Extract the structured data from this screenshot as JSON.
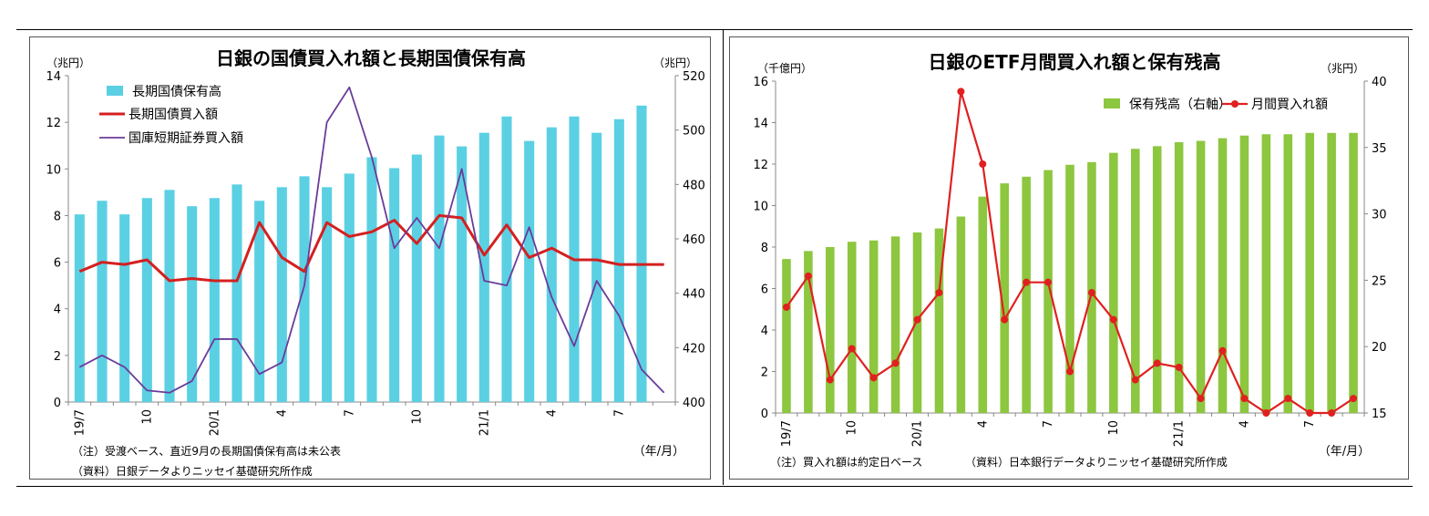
{
  "chart_data": [
    {
      "type": "bar+line",
      "title": "日銀の国債買入れ額と長期国債保有高",
      "y_left_unit": "（兆円）",
      "y_right_unit": "（兆円）",
      "x_unit": "（年/月）",
      "ylim_left": [
        0,
        14
      ],
      "ylim_right": [
        400,
        520
      ],
      "yticks_left": [
        0,
        2,
        4,
        6,
        8,
        10,
        12,
        14
      ],
      "yticks_right": [
        400,
        420,
        440,
        460,
        480,
        500,
        520
      ],
      "categories": [
        "19/7",
        "19/8",
        "19/9",
        "19/10",
        "19/11",
        "19/12",
        "20/1",
        "20/2",
        "20/3",
        "20/4",
        "20/5",
        "20/6",
        "20/7",
        "20/8",
        "20/9",
        "20/10",
        "20/11",
        "20/12",
        "21/1",
        "21/2",
        "21/3",
        "21/4",
        "21/5",
        "21/6",
        "21/7",
        "21/8",
        "21/9"
      ],
      "x_tick_labels": [
        "19/7",
        "",
        "",
        "10",
        "",
        "",
        "20/1",
        "",
        "",
        "4",
        "",
        "",
        "7",
        "",
        "",
        "10",
        "",
        "",
        "21/1",
        "",
        "",
        "4",
        "",
        "",
        "7",
        "",
        ""
      ],
      "legend": [
        "長期国債保有高",
        "長期国債買入額",
        "国庫短期証券買入額"
      ],
      "series": [
        {
          "name": "長期国債保有高",
          "kind": "bar",
          "axis": "right",
          "color": "#5BD0E3",
          "values": [
            469,
            474,
            469,
            475,
            478,
            472,
            475,
            480,
            474,
            479,
            483,
            479,
            484,
            490,
            486,
            491,
            498,
            494,
            499,
            505,
            496,
            501,
            505,
            499,
            504,
            509,
            null
          ]
        },
        {
          "name": "長期国債買入額",
          "kind": "line",
          "axis": "left",
          "color": "#D42020",
          "values": [
            5.6,
            6.0,
            5.9,
            6.1,
            5.2,
            5.3,
            5.2,
            5.2,
            7.7,
            6.2,
            5.6,
            7.7,
            7.1,
            7.3,
            7.8,
            6.8,
            8.0,
            7.9,
            6.3,
            7.6,
            6.2,
            6.6,
            6.1,
            6.1,
            5.9,
            5.9,
            5.9
          ]
        },
        {
          "name": "国庫短期証券買入額",
          "kind": "line",
          "axis": "left",
          "color": "#6A3C9A",
          "values": [
            1.5,
            2.0,
            1.5,
            0.5,
            0.4,
            0.9,
            2.7,
            2.7,
            1.2,
            1.7,
            5.0,
            12.0,
            13.5,
            10.5,
            6.6,
            7.9,
            6.6,
            10.0,
            5.2,
            5.0,
            7.5,
            4.5,
            2.4,
            5.2,
            3.7,
            1.4,
            0.4
          ]
        }
      ],
      "notes": [
        "（注）受渡ベース、直近9月の長期国債保有高は未公表",
        "（資料）日銀データよりニッセイ基礎研究所作成"
      ]
    },
    {
      "type": "bar+line",
      "title": "日銀のETF月間買入れ額と保有残高",
      "y_left_unit": "（千億円）",
      "y_right_unit": "（兆円）",
      "x_unit": "（年/月）",
      "ylim_left": [
        0,
        16
      ],
      "ylim_right": [
        15,
        40
      ],
      "yticks_left": [
        0,
        2,
        4,
        6,
        8,
        10,
        12,
        14,
        16
      ],
      "yticks_right": [
        15,
        20,
        25,
        30,
        35,
        40
      ],
      "categories": [
        "19/7",
        "19/8",
        "19/9",
        "19/10",
        "19/11",
        "19/12",
        "20/1",
        "20/2",
        "20/3",
        "20/4",
        "20/5",
        "20/6",
        "20/7",
        "20/8",
        "20/9",
        "20/10",
        "20/11",
        "20/12",
        "21/1",
        "21/2",
        "21/3",
        "21/4",
        "21/5",
        "21/6",
        "21/7",
        "21/8",
        "21/9"
      ],
      "x_tick_labels": [
        "19/7",
        "",
        "",
        "10",
        "",
        "",
        "20/1",
        "",
        "",
        "4",
        "",
        "",
        "7",
        "",
        "",
        "10",
        "",
        "",
        "21/1",
        "",
        "",
        "4",
        "",
        "",
        "7",
        "",
        ""
      ],
      "legend": [
        "保有残高（右軸）",
        "月間買入れ額"
      ],
      "series": [
        {
          "name": "保有残高（右軸）",
          "kind": "bar",
          "axis": "right",
          "color": "#8DC63F",
          "values": [
            26.6,
            27.2,
            27.5,
            27.9,
            28.0,
            28.3,
            28.6,
            28.9,
            29.8,
            31.3,
            32.3,
            32.8,
            33.3,
            33.7,
            33.9,
            34.6,
            34.9,
            35.1,
            35.4,
            35.5,
            35.7,
            35.9,
            36.0,
            36.0,
            36.1,
            36.1,
            36.1
          ]
        },
        {
          "name": "月間買入れ額",
          "kind": "line+marker",
          "axis": "left",
          "color": "#E02020",
          "values": [
            5.1,
            6.6,
            1.6,
            3.1,
            1.7,
            2.4,
            4.5,
            5.8,
            15.5,
            12.0,
            4.5,
            6.3,
            6.3,
            2.0,
            5.8,
            4.5,
            1.6,
            2.4,
            2.2,
            0.7,
            3.0,
            0.7,
            0.0,
            0.7,
            0.0,
            0.0,
            0.7
          ]
        }
      ],
      "notes": [
        "（注）買入れ額は約定日ベース",
        "（資料）日本銀行データよりニッセイ基礎研究所作成"
      ]
    }
  ]
}
